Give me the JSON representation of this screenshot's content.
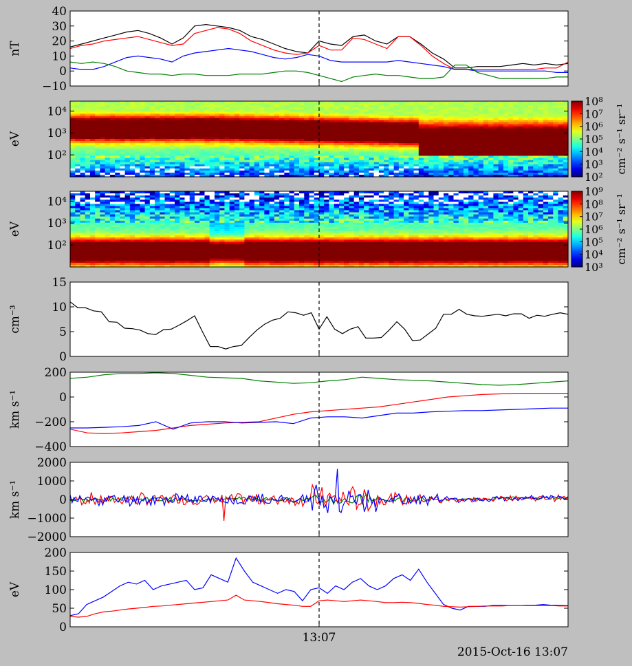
{
  "figure": {
    "background": "#bfbfbf",
    "xtick_label": "13:07",
    "timestamp": "2015-Oct-16 13:07",
    "marker_fraction": 0.5
  },
  "chart_data": [
    {
      "id": "b-field",
      "type": "line",
      "ylabel": "nT",
      "ylim": [
        -10,
        40
      ],
      "yticks": [
        "40",
        "30",
        "20",
        "10",
        "0",
        "−10"
      ],
      "ytick_values": [
        40,
        30,
        20,
        10,
        0,
        -10
      ],
      "series": [
        {
          "color": "#000000",
          "values": [
            16,
            18,
            20,
            22,
            24,
            26,
            27,
            25,
            22,
            18,
            22,
            30,
            31,
            30,
            29,
            27,
            23,
            21,
            18,
            15,
            13,
            12,
            20,
            18,
            17,
            23,
            24,
            20,
            18,
            23,
            23,
            18,
            12,
            8,
            2,
            2,
            3,
            3,
            3,
            4,
            5,
            4,
            5,
            4,
            5
          ]
        },
        {
          "color": "#ff0000",
          "values": [
            15,
            17,
            18,
            20,
            21,
            22,
            23,
            21,
            19,
            17,
            18,
            25,
            27,
            29,
            28,
            25,
            20,
            17,
            14,
            12,
            11,
            12,
            17,
            14,
            14,
            22,
            21,
            18,
            15,
            23,
            23,
            17,
            10,
            5,
            1,
            1,
            1,
            1,
            1,
            1,
            1,
            1,
            2,
            2,
            6
          ]
        },
        {
          "color": "#0000ff",
          "values": [
            2,
            1,
            1,
            3,
            6,
            9,
            10,
            9,
            8,
            6,
            10,
            12,
            13,
            14,
            15,
            14,
            13,
            11,
            9,
            8,
            9,
            11,
            10,
            7,
            6,
            6,
            6,
            6,
            6,
            7,
            6,
            5,
            4,
            3,
            1,
            1,
            0,
            0,
            0,
            0,
            0,
            0,
            0,
            -1,
            -1
          ]
        },
        {
          "color": "#008000",
          "values": [
            6,
            5,
            6,
            5,
            3,
            0,
            -1,
            -2,
            -2,
            -3,
            -2,
            -2,
            -3,
            -3,
            -3,
            -2,
            -2,
            -2,
            -1,
            0,
            0,
            -1,
            -3,
            -5,
            -7,
            -4,
            -3,
            -2,
            -3,
            -3,
            -4,
            -5,
            -5,
            -4,
            4,
            4,
            -1,
            -3,
            -5,
            -5,
            -5,
            -5,
            -5,
            -4,
            -4
          ]
        }
      ]
    },
    {
      "id": "ion-spectrogram",
      "type": "heatmap",
      "ylabel": "eV",
      "yscale": "log",
      "yticks": [
        "10⁴",
        "10³",
        "10²"
      ],
      "ytick_values": [
        10000,
        1000,
        100
      ],
      "colorbar": {
        "label": "cm⁻² s⁻¹ sr⁻¹",
        "ticks": [
          "10⁸",
          "10⁷",
          "10⁶",
          "10⁵",
          "10⁴",
          "10³",
          "10²"
        ],
        "range": [
          2,
          8
        ]
      }
    },
    {
      "id": "electron-spectrogram",
      "type": "heatmap",
      "ylabel": "eV",
      "yscale": "log",
      "yticks": [
        "10⁴",
        "10³",
        "10²"
      ],
      "ytick_values": [
        10000,
        1000,
        100
      ],
      "colorbar": {
        "label": "cm⁻² s⁻¹ sr⁻¹",
        "ticks": [
          "10⁹",
          "10⁸",
          "10⁷",
          "10⁶",
          "10⁵",
          "10⁴",
          "10³"
        ],
        "range": [
          3,
          9
        ]
      }
    },
    {
      "id": "density",
      "type": "line",
      "ylabel": "cm⁻³",
      "ylim": [
        0,
        15
      ],
      "yticks": [
        "15",
        "10",
        "5",
        "0"
      ],
      "ytick_values": [
        15,
        10,
        5,
        0
      ],
      "series": [
        {
          "color": "#000000",
          "values": [
            11,
            9.8,
            9.8,
            9.2,
            9,
            7,
            6.9,
            5.7,
            5.6,
            5.3,
            4.6,
            4.4,
            5.4,
            5.5,
            6.3,
            7.2,
            8.2,
            5,
            2,
            2,
            1.5,
            2,
            2.2,
            3.8,
            5.3,
            6.5,
            7.3,
            7.7,
            9,
            8.8,
            8.3,
            8.8,
            5.5,
            8,
            5.5,
            4.6,
            5.5,
            6,
            3.7,
            3.7,
            3.8,
            5.3,
            7,
            5.5,
            3.2,
            3.3,
            4.5,
            5.7,
            8.5,
            8.5,
            9.5,
            8.5,
            8.2,
            8.1,
            8.3,
            8.5,
            8.2,
            8.6,
            8.6,
            7.7,
            8.3,
            8.1,
            8.5,
            8.8,
            8.5
          ]
        }
      ]
    },
    {
      "id": "velocity",
      "type": "line",
      "ylabel": "km s⁻¹",
      "ylim": [
        -400,
        200
      ],
      "yticks": [
        "200",
        "0",
        "−200",
        "−400"
      ],
      "ytick_values": [
        200,
        0,
        -200,
        -400
      ],
      "series": [
        {
          "color": "#008000",
          "values": [
            150,
            160,
            180,
            190,
            190,
            195,
            190,
            175,
            160,
            155,
            150,
            130,
            120,
            110,
            115,
            130,
            140,
            160,
            150,
            140,
            135,
            130,
            120,
            110,
            100,
            95,
            100,
            110,
            120,
            130
          ]
        },
        {
          "color": "#ff0000",
          "values": [
            -260,
            -290,
            -295,
            -290,
            -280,
            -270,
            -250,
            -230,
            -220,
            -210,
            -205,
            -200,
            -170,
            -140,
            -120,
            -110,
            -100,
            -90,
            -80,
            -60,
            -40,
            -20,
            0,
            10,
            20,
            25,
            30,
            30,
            30,
            30
          ]
        },
        {
          "color": "#0000ff",
          "values": [
            -250,
            -250,
            -245,
            -240,
            -230,
            -200,
            -260,
            -210,
            -200,
            -200,
            -210,
            -205,
            -200,
            -215,
            -170,
            -160,
            -160,
            -170,
            -150,
            -130,
            -130,
            -120,
            -115,
            -110,
            -110,
            -105,
            -100,
            -95,
            -90,
            -90
          ]
        }
      ]
    },
    {
      "id": "velocity-fluctuations",
      "type": "line",
      "ylabel": "km s⁻¹",
      "ylim": [
        -2000,
        2000
      ],
      "yticks": [
        "2000",
        "1000",
        "0",
        "−1000",
        "−2000"
      ],
      "ytick_values": [
        2000,
        1000,
        0,
        -1000,
        -2000
      ],
      "series": [
        {
          "color": "#008000",
          "noise": 130,
          "seed": 3
        },
        {
          "color": "#ff0000",
          "noise": 330,
          "seed": 7
        },
        {
          "color": "#0000ff",
          "noise": 300,
          "seed": 11
        }
      ]
    },
    {
      "id": "temperature",
      "type": "line",
      "ylabel": "eV",
      "ylim": [
        0,
        200
      ],
      "yticks": [
        "200",
        "150",
        "100",
        "50",
        "0"
      ],
      "ytick_values": [
        200,
        150,
        100,
        50,
        0
      ],
      "series": [
        {
          "color": "#0000ff",
          "values": [
            30,
            35,
            60,
            70,
            80,
            95,
            110,
            120,
            115,
            125,
            100,
            110,
            115,
            120,
            125,
            100,
            105,
            140,
            130,
            120,
            185,
            150,
            120,
            110,
            100,
            90,
            100,
            95,
            70,
            100,
            105,
            90,
            110,
            100,
            120,
            130,
            110,
            100,
            110,
            130,
            140,
            125,
            155,
            120,
            90,
            60,
            50,
            45,
            55,
            55,
            55,
            58,
            58,
            57,
            57,
            58,
            58,
            60,
            58,
            58,
            57
          ]
        },
        {
          "color": "#ff0000",
          "values": [
            28,
            26,
            28,
            35,
            40,
            42,
            45,
            48,
            50,
            52,
            55,
            56,
            58,
            60,
            62,
            64,
            66,
            68,
            70,
            72,
            85,
            72,
            70,
            68,
            65,
            62,
            60,
            58,
            55,
            55,
            70,
            72,
            70,
            68,
            70,
            72,
            70,
            68,
            65,
            65,
            66,
            65,
            63,
            60,
            58,
            55,
            54,
            53,
            54,
            55,
            56,
            56,
            56,
            57,
            57,
            57,
            57,
            57,
            57,
            56,
            56
          ]
        }
      ]
    }
  ]
}
